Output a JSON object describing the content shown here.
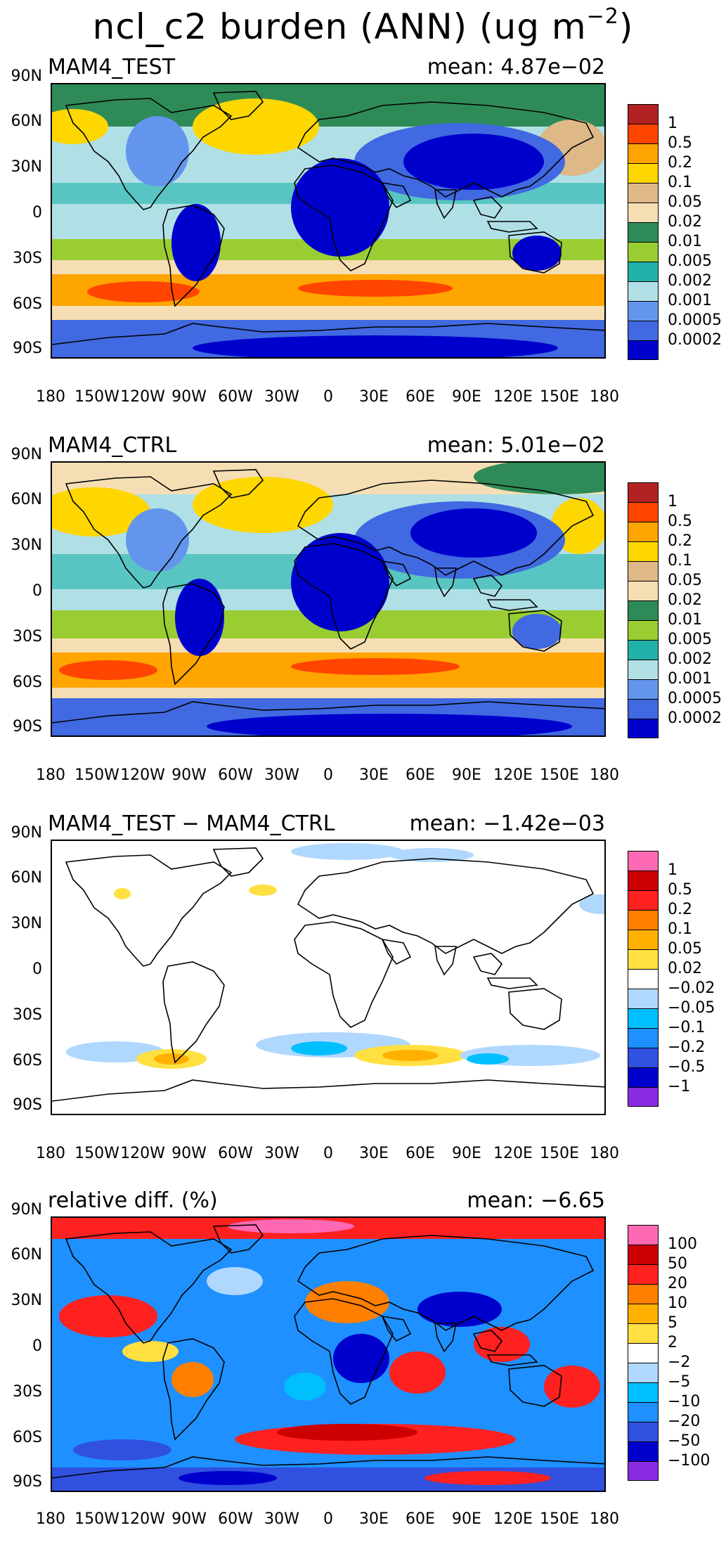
{
  "figure": {
    "title_main": "ncl_c2 burden (ANN) (ug m",
    "title_sup": "−2",
    "title_close": ")"
  },
  "axes": {
    "lat_labels": [
      "90N",
      "60N",
      "30N",
      "0",
      "30S",
      "60S",
      "90S"
    ],
    "lon_labels": [
      "180",
      "150W",
      "120W",
      "90W",
      "60W",
      "30W",
      "0",
      "30E",
      "60E",
      "90E",
      "120E",
      "150E",
      "180"
    ]
  },
  "colorbars": {
    "burden": {
      "labels": [
        "1",
        "0.5",
        "0.2",
        "0.1",
        "0.05",
        "0.02",
        "0.01",
        "0.005",
        "0.002",
        "0.001",
        "0.0005",
        "0.0002"
      ],
      "colors": [
        "#b22222",
        "#ff4500",
        "#ffa500",
        "#ffd700",
        "#deb887",
        "#f5deb3",
        "#2e8b57",
        "#9acd32",
        "#20b2aa",
        "#b0e0e6",
        "#6495ed",
        "#4169e1",
        "#0000cd"
      ]
    },
    "diff": {
      "labels": [
        "1",
        "0.5",
        "0.2",
        "0.1",
        "0.05",
        "0.02",
        "−0.02",
        "−0.05",
        "−0.1",
        "−0.2",
        "−0.5",
        "−1"
      ],
      "colors": [
        "#ff69b4",
        "#cc0000",
        "#ff2020",
        "#ff7f00",
        "#ffb000",
        "#ffe040",
        "#ffffff",
        "#b0d8ff",
        "#00bfff",
        "#1e90ff",
        "#3050e0",
        "#0000cd",
        "#8a2be2"
      ]
    },
    "reldiff": {
      "labels": [
        "100",
        "50",
        "20",
        "10",
        "5",
        "2",
        "−2",
        "−5",
        "−10",
        "−20",
        "−50",
        "−100"
      ],
      "colors": [
        "#ff69b4",
        "#cc0000",
        "#ff2020",
        "#ff7f00",
        "#ffb000",
        "#ffe040",
        "#ffffff",
        "#b0d8ff",
        "#00bfff",
        "#1e90ff",
        "#3050e0",
        "#0000cd",
        "#8a2be2"
      ]
    }
  },
  "panels": [
    {
      "id": "test",
      "name": "MAM4_TEST",
      "mean": "mean: 4.87e−02",
      "cbar": "burden"
    },
    {
      "id": "ctrl",
      "name": "MAM4_CTRL",
      "mean": "mean: 5.01e−02",
      "cbar": "burden"
    },
    {
      "id": "diff",
      "name": "MAM4_TEST − MAM4_CTRL",
      "mean": "mean: −1.42e−03",
      "cbar": "diff"
    },
    {
      "id": "rel",
      "name": "relative diff. (%)",
      "mean": "mean: −6.65",
      "cbar": "reldiff"
    }
  ]
}
